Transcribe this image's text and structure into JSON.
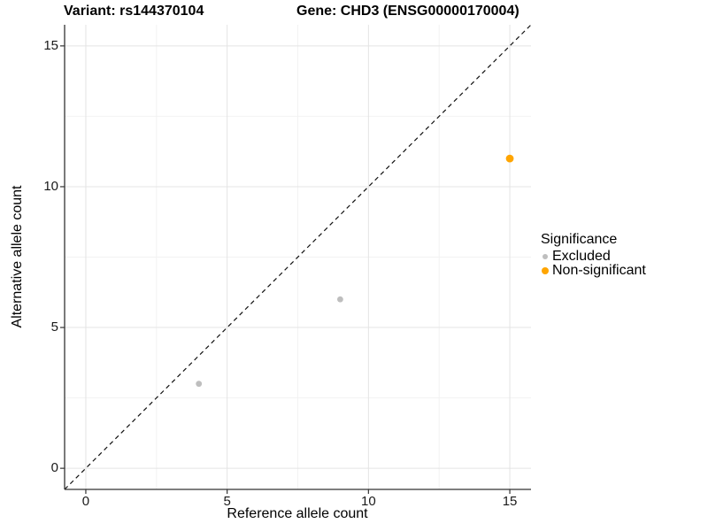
{
  "header": {
    "variant_title": "Variant: rs144370104",
    "gene_title": "Gene: CHD3 (ENSG00000170004)"
  },
  "legend": {
    "title": "Significance",
    "items": [
      {
        "label": "Excluded",
        "color": "#BEBEBE",
        "key_size": 6
      },
      {
        "label": "Non-significant",
        "color": "#FFA500",
        "key_size": 8
      }
    ]
  },
  "chart_data": {
    "type": "scatter",
    "title": "Variant: rs144370104   Gene: CHD3 (ENSG00000170004)",
    "xlabel": "Reference allele count",
    "ylabel": "Alternative allele count",
    "xlim": [
      -0.75,
      15.75
    ],
    "ylim": [
      -0.75,
      15.75
    ],
    "x_ticks": [
      0,
      5,
      10,
      15
    ],
    "y_ticks": [
      0,
      5,
      10,
      15
    ],
    "x_minor_ticks": [
      2.5,
      7.5,
      12.5
    ],
    "y_minor_ticks": [
      2.5,
      7.5,
      12.5
    ],
    "grid": true,
    "legend_position": "right",
    "series": [
      {
        "name": "Excluded",
        "color": "#BEBEBE",
        "point_radius": 3.4,
        "points": [
          {
            "x": 4,
            "y": 3
          },
          {
            "x": 9,
            "y": 6
          }
        ]
      },
      {
        "name": "Non-significant",
        "color": "#FFA500",
        "point_radius": 4.4,
        "points": [
          {
            "x": 15,
            "y": 11
          }
        ]
      }
    ],
    "reference_line": {
      "kind": "identity",
      "slope": 1,
      "intercept": 0,
      "style": "dashed",
      "color": "#111111"
    }
  },
  "colors": {
    "grid_major": "#E4E4E4",
    "grid_minor": "#F2F2F2",
    "axis_line": "#333333",
    "tick_mark": "#333333",
    "background": "#FFFFFF"
  }
}
